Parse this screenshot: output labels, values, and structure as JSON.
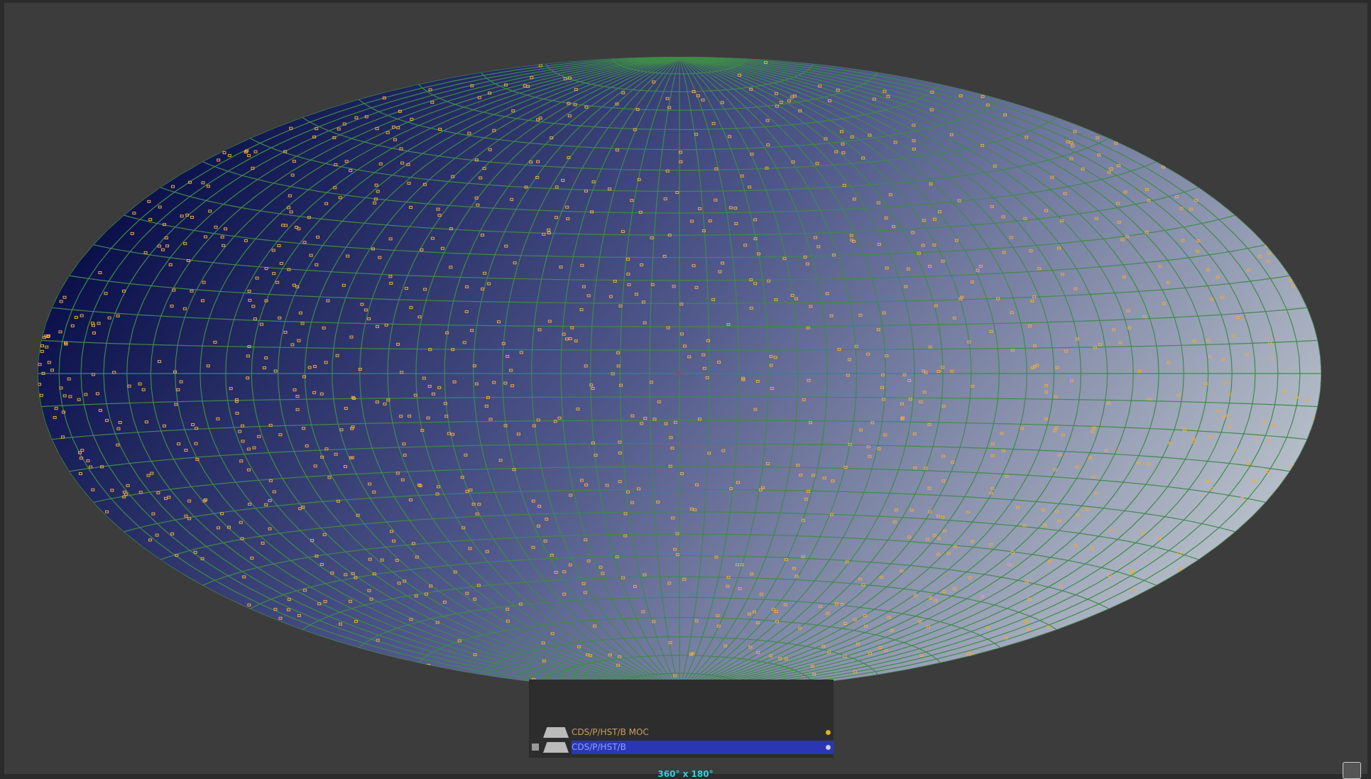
{
  "layers": [
    {
      "name": "CDS/P/HST/B MOC"
    },
    {
      "name": "CDS/P/HST/B"
    }
  ],
  "fov": "360° x 180°"
}
